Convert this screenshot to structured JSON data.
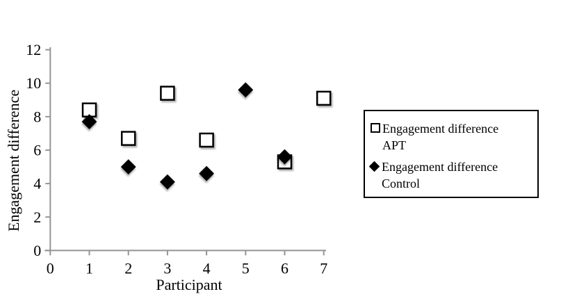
{
  "chart_data": {
    "type": "scatter",
    "title": "",
    "xlabel": "Participant",
    "ylabel": "Engagement difference",
    "xlim": [
      0,
      7
    ],
    "ylim": [
      0,
      12
    ],
    "xticks": [
      0,
      1,
      2,
      3,
      4,
      5,
      6,
      7
    ],
    "yticks": [
      0,
      2,
      4,
      6,
      8,
      10,
      12
    ],
    "grid": false,
    "legend_position": "right-outside",
    "x": [
      1,
      2,
      3,
      4,
      5,
      6,
      7
    ],
    "series": [
      {
        "name": "Engagement difference APT",
        "legend_lines": [
          "Engagement difference",
          "APT"
        ],
        "marker": "open-square",
        "values": [
          8.4,
          6.7,
          9.4,
          6.6,
          null,
          5.3,
          9.1
        ]
      },
      {
        "name": "Engagement difference Control",
        "legend_lines": [
          "Engagement difference",
          "Control"
        ],
        "marker": "filled-diamond",
        "values": [
          7.7,
          5.0,
          4.1,
          4.6,
          9.6,
          5.6,
          null
        ]
      }
    ]
  },
  "colors": {
    "background": "#ffffff",
    "axis": "#949494",
    "tick": "#949494",
    "text": "#000000",
    "marker_stroke": "#000000",
    "open_marker_fill": "#ffffff",
    "solid_marker_fill": "#000000",
    "legend_border": "#000000"
  }
}
